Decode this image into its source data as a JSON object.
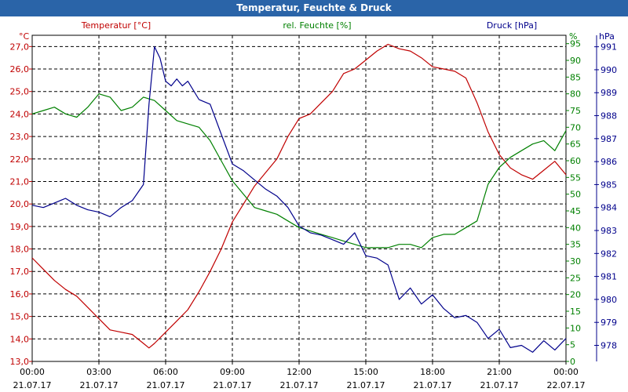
{
  "window": {
    "title": "Temperatur, Feuchte & Druck"
  },
  "colors": {
    "titlebar": "#2a64a8",
    "temp": "#c00000",
    "hum": "#008000",
    "press": "#00008b",
    "axis": "#000000"
  },
  "chart_data": {
    "type": "line",
    "title": "Temperatur, Feuchte & Druck",
    "x": {
      "labels": [
        "00:00",
        "03:00",
        "06:00",
        "09:00",
        "12:00",
        "15:00",
        "18:00",
        "21:00",
        "00:00"
      ],
      "dates": [
        "21.07.17",
        "21.07.17",
        "21.07.17",
        "21.07.17",
        "21.07.17",
        "21.07.17",
        "21.07.17",
        "21.07.17",
        "22.07.17"
      ],
      "range_hours": [
        0,
        24
      ]
    },
    "axes": {
      "temp": {
        "label": "Temperatur [°C]",
        "unit": "°C",
        "min": 13.0,
        "max": 27.5,
        "ticks": [
          "13,0",
          "14,0",
          "15,0",
          "16,0",
          "17,0",
          "18,0",
          "19,0",
          "20,0",
          "21,0",
          "22,0",
          "23,0",
          "24,0",
          "25,0",
          "26,0",
          "27,0"
        ]
      },
      "hum": {
        "label": "rel. Feuchte [%]",
        "unit": "%",
        "min": 0,
        "max": 97.5,
        "ticks": [
          "0",
          "5",
          "10",
          "15",
          "20",
          "25",
          "30",
          "35",
          "40",
          "45",
          "50",
          "55",
          "60",
          "65",
          "70",
          "75",
          "80",
          "85",
          "90",
          "95"
        ]
      },
      "press": {
        "label": "Druck [hPa]",
        "unit": "hPa",
        "min": 977.3,
        "max": 991.5,
        "ticks": [
          "978",
          "979",
          "980",
          "981",
          "982",
          "983",
          "984",
          "985",
          "986",
          "987",
          "988",
          "989",
          "990",
          "991"
        ]
      }
    },
    "series": [
      {
        "name": "Temperatur",
        "axis": "temp",
        "points": [
          [
            0,
            17.6
          ],
          [
            0.5,
            17.1
          ],
          [
            1,
            16.6
          ],
          [
            1.5,
            16.2
          ],
          [
            2,
            15.9
          ],
          [
            2.5,
            15.4
          ],
          [
            3,
            14.9
          ],
          [
            3.5,
            14.4
          ],
          [
            4,
            14.3
          ],
          [
            4.5,
            14.2
          ],
          [
            5,
            13.8
          ],
          [
            5.25,
            13.6
          ],
          [
            5.5,
            13.8
          ],
          [
            6,
            14.3
          ],
          [
            6.5,
            14.8
          ],
          [
            7,
            15.3
          ],
          [
            7.5,
            16.1
          ],
          [
            8,
            17.0
          ],
          [
            8.5,
            18.0
          ],
          [
            9,
            19.2
          ],
          [
            9.5,
            20.0
          ],
          [
            10,
            20.8
          ],
          [
            10.5,
            21.4
          ],
          [
            11,
            22.0
          ],
          [
            11.5,
            23.0
          ],
          [
            12,
            23.8
          ],
          [
            12.5,
            24.0
          ],
          [
            13,
            24.5
          ],
          [
            13.5,
            25.0
          ],
          [
            14,
            25.8
          ],
          [
            14.5,
            26.0
          ],
          [
            15,
            26.4
          ],
          [
            15.5,
            26.8
          ],
          [
            16,
            27.1
          ],
          [
            16.5,
            26.9
          ],
          [
            17,
            26.8
          ],
          [
            17.5,
            26.5
          ],
          [
            18,
            26.1
          ],
          [
            18.5,
            26.0
          ],
          [
            19,
            25.9
          ],
          [
            19.5,
            25.6
          ],
          [
            20,
            24.5
          ],
          [
            20.5,
            23.2
          ],
          [
            21,
            22.2
          ],
          [
            21.5,
            21.6
          ],
          [
            22,
            21.3
          ],
          [
            22.5,
            21.1
          ],
          [
            23,
            21.5
          ],
          [
            23.5,
            21.9
          ],
          [
            24,
            21.3
          ]
        ]
      },
      {
        "name": "rel. Feuchte",
        "axis": "hum",
        "points": [
          [
            0,
            74
          ],
          [
            0.5,
            75
          ],
          [
            1,
            76
          ],
          [
            1.5,
            74
          ],
          [
            2,
            73
          ],
          [
            2.5,
            76
          ],
          [
            3,
            80
          ],
          [
            3.5,
            79
          ],
          [
            4,
            75
          ],
          [
            4.5,
            76
          ],
          [
            5,
            79
          ],
          [
            5.5,
            78
          ],
          [
            6,
            75
          ],
          [
            6.5,
            72
          ],
          [
            7,
            71
          ],
          [
            7.5,
            70
          ],
          [
            8,
            66
          ],
          [
            8.5,
            60
          ],
          [
            9,
            54
          ],
          [
            9.5,
            50
          ],
          [
            10,
            46
          ],
          [
            10.5,
            45
          ],
          [
            11,
            44
          ],
          [
            11.5,
            42
          ],
          [
            12,
            40
          ],
          [
            12.5,
            39
          ],
          [
            13,
            38
          ],
          [
            13.5,
            37
          ],
          [
            14,
            36
          ],
          [
            14.5,
            35
          ],
          [
            15,
            34
          ],
          [
            15.5,
            34
          ],
          [
            16,
            34
          ],
          [
            16.5,
            35
          ],
          [
            17,
            35
          ],
          [
            17.5,
            34
          ],
          [
            18,
            37
          ],
          [
            18.5,
            38
          ],
          [
            19,
            38
          ],
          [
            19.5,
            40
          ],
          [
            20,
            42
          ],
          [
            20.5,
            53
          ],
          [
            21,
            58
          ],
          [
            21.5,
            61
          ],
          [
            22,
            63
          ],
          [
            22.5,
            65
          ],
          [
            23,
            66
          ],
          [
            23.5,
            63
          ],
          [
            24,
            69
          ]
        ]
      },
      {
        "name": "Druck",
        "axis": "press",
        "points": [
          [
            0,
            984.1
          ],
          [
            0.5,
            984.0
          ],
          [
            1,
            984.2
          ],
          [
            1.5,
            984.4
          ],
          [
            2,
            984.1
          ],
          [
            2.5,
            983.9
          ],
          [
            3,
            983.8
          ],
          [
            3.5,
            983.6
          ],
          [
            4,
            984.0
          ],
          [
            4.5,
            984.3
          ],
          [
            5,
            985.0
          ],
          [
            5.25,
            988.5
          ],
          [
            5.5,
            991.0
          ],
          [
            5.75,
            990.5
          ],
          [
            6,
            989.5
          ],
          [
            6.25,
            989.3
          ],
          [
            6.5,
            989.6
          ],
          [
            6.75,
            989.3
          ],
          [
            7,
            989.5
          ],
          [
            7.5,
            988.7
          ],
          [
            8,
            988.5
          ],
          [
            8.5,
            987.2
          ],
          [
            9,
            985.9
          ],
          [
            9.5,
            985.6
          ],
          [
            10,
            985.2
          ],
          [
            10.5,
            984.8
          ],
          [
            11,
            984.5
          ],
          [
            11.5,
            984.0
          ],
          [
            12,
            983.2
          ],
          [
            12.5,
            982.9
          ],
          [
            13,
            982.8
          ],
          [
            13.5,
            982.6
          ],
          [
            14,
            982.4
          ],
          [
            14.5,
            982.9
          ],
          [
            15,
            981.9
          ],
          [
            15.5,
            981.8
          ],
          [
            16,
            981.5
          ],
          [
            16.5,
            980.0
          ],
          [
            17,
            980.5
          ],
          [
            17.5,
            979.8
          ],
          [
            18,
            980.2
          ],
          [
            18.5,
            979.6
          ],
          [
            19,
            979.2
          ],
          [
            19.5,
            979.3
          ],
          [
            20,
            979.0
          ],
          [
            20.5,
            978.3
          ],
          [
            21,
            978.7
          ],
          [
            21.5,
            977.9
          ],
          [
            22,
            978.0
          ],
          [
            22.5,
            977.7
          ],
          [
            23,
            978.2
          ],
          [
            23.5,
            977.8
          ],
          [
            24,
            978.3
          ]
        ]
      }
    ],
    "grid": true
  }
}
